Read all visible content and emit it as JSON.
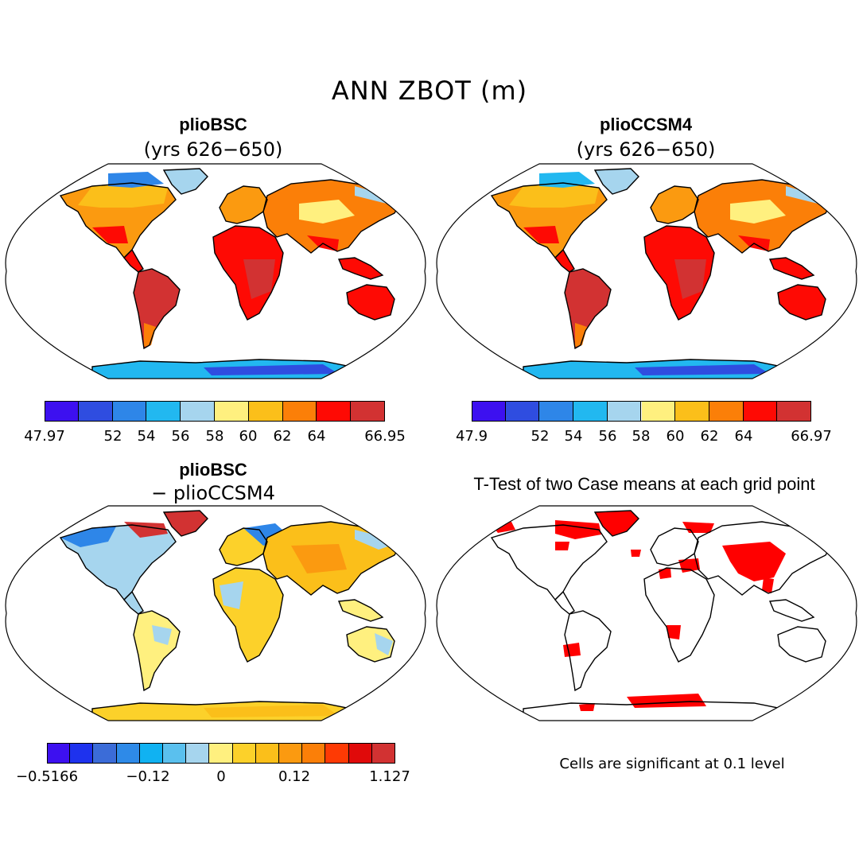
{
  "title": "ANN ZBOT (m)",
  "panels": [
    {
      "id": "top-left",
      "title": "plioBSC",
      "subtitle": "(yrs 626−650)"
    },
    {
      "id": "top-right",
      "title": "plioCCSM4",
      "subtitle": "(yrs 626−650)"
    },
    {
      "id": "bottom-left",
      "title": "plioBSC",
      "subtitle": "− plioCCSM4"
    },
    {
      "id": "bottom-right",
      "title": "T-Test of two Case means at each grid point",
      "subtitle": ""
    }
  ],
  "colorbars": {
    "top_left": {
      "colors": [
        "#3d10f0",
        "#2f4de0",
        "#2e86e8",
        "#22b8f0",
        "#a6d5ee",
        "#fff07f",
        "#fbbf1a",
        "#fb7f08",
        "#fe0a04",
        "#d23232"
      ],
      "labels": [
        "47.97",
        "52",
        "54",
        "56",
        "58",
        "60",
        "62",
        "64",
        "66.95"
      ]
    },
    "top_right": {
      "colors": [
        "#3d10f0",
        "#2f4de0",
        "#2e86e8",
        "#22b8f0",
        "#a6d5ee",
        "#fff07f",
        "#fbbf1a",
        "#fb7f08",
        "#fe0a04",
        "#d23232"
      ],
      "labels": [
        "47.9",
        "52",
        "54",
        "56",
        "58",
        "60",
        "62",
        "64",
        "66.97"
      ]
    },
    "bottom_left": {
      "colors": [
        "#3d10f0",
        "#1e32ee",
        "#3b6cd8",
        "#2e8ae8",
        "#10b2f2",
        "#5ac0ee",
        "#a6d5ee",
        "#fff07f",
        "#fcd12a",
        "#fbbf1a",
        "#fb9a10",
        "#fb7f08",
        "#fe3a04",
        "#e00a0a",
        "#d23232"
      ],
      "labels": [
        "−0.5166",
        "−0.12",
        "0",
        "0.12",
        "1.127"
      ]
    }
  },
  "note": "Cells are significant at 0.1 level",
  "colors": {
    "significant": "#ff0000",
    "land_outline": "#000000"
  }
}
